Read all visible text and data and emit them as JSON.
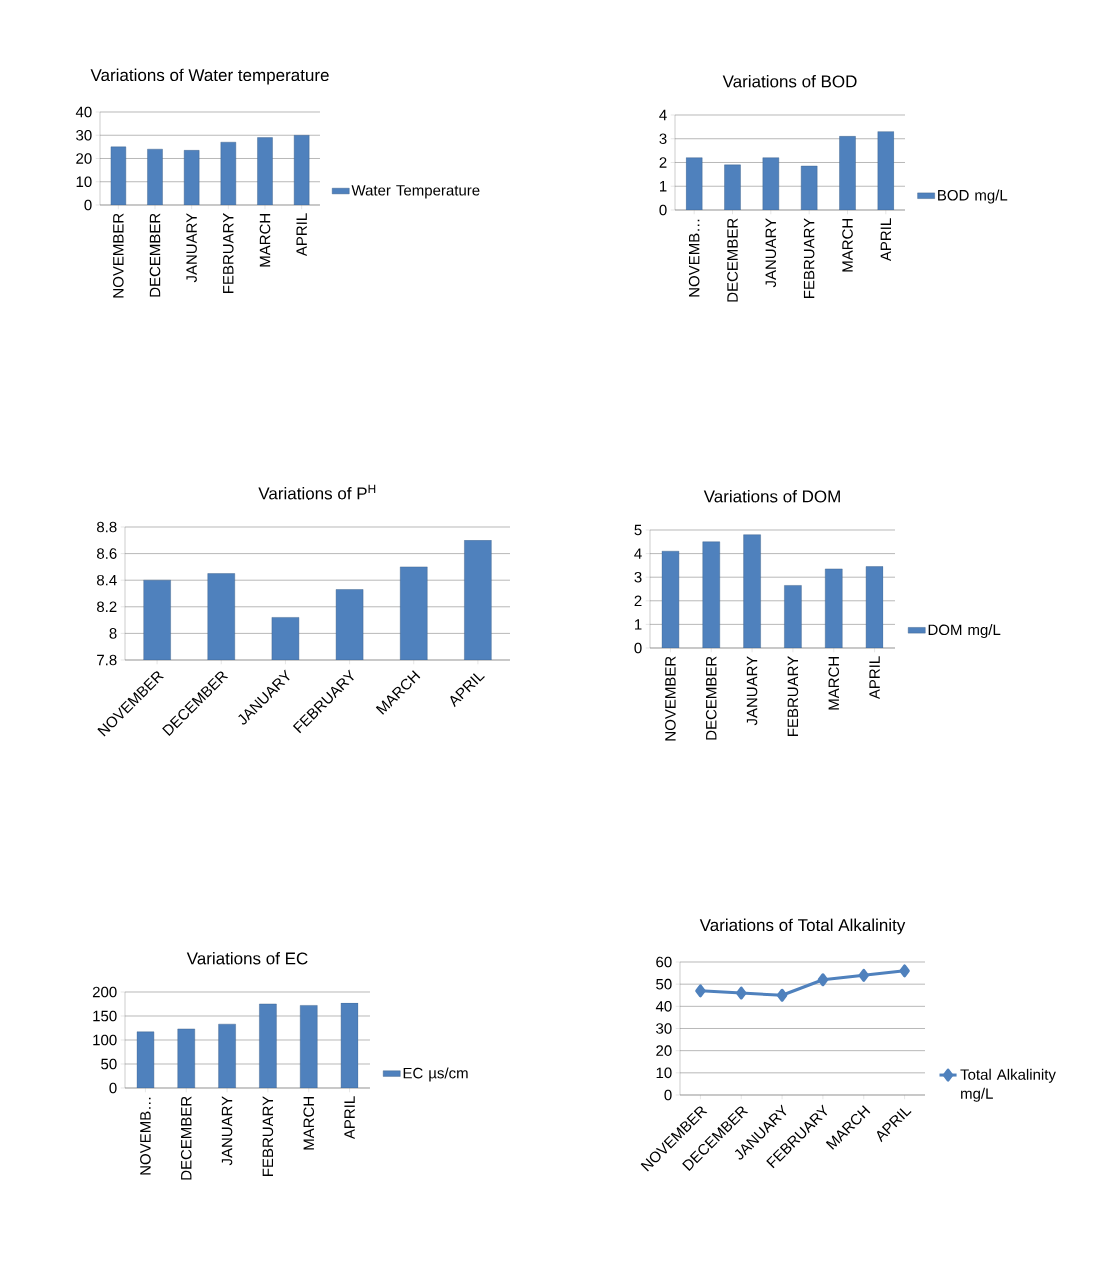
{
  "chart_data": [
    {
      "type": "bar",
      "title": "Variations of Water temperature",
      "categories": [
        "NOVEMBER",
        "DECEMBER",
        "JANUARY",
        "FEBRUARY",
        "MARCH",
        "APRIL"
      ],
      "series": [
        {
          "name": "Water Temperature",
          "color": "#4f81bd",
          "values": [
            25,
            24,
            23.5,
            27,
            29,
            30
          ]
        }
      ],
      "ylim": [
        0,
        40
      ],
      "yticks": [
        0,
        10,
        20,
        30,
        40
      ],
      "grid": "y",
      "legend": "right"
    },
    {
      "type": "bar",
      "title": "Variations  of BOD",
      "categories": [
        "NOVEMB…",
        "DECEMBER",
        "JANUARY",
        "FEBRUARY",
        "MARCH",
        "APRIL"
      ],
      "series": [
        {
          "name": "BOD   mg/L",
          "color": "#4f81bd",
          "values": [
            2.2,
            1.9,
            2.2,
            1.85,
            3.1,
            3.3
          ]
        }
      ],
      "ylim": [
        0,
        4
      ],
      "yticks": [
        0,
        1,
        2,
        3,
        4
      ],
      "grid": "y",
      "legend": "right"
    },
    {
      "type": "bar",
      "title": "Variations of P$^{H}$",
      "categories": [
        "NOVEMBER",
        "DECEMBER",
        "JANUARY",
        "FEBRUARY",
        "MARCH",
        "APRIL"
      ],
      "series": [
        {
          "color": "#4f81bd",
          "values": [
            8.4,
            8.45,
            8.12,
            8.33,
            8.5,
            8.7
          ]
        }
      ],
      "ylim": [
        7.8,
        8.8
      ],
      "yticks": [
        7.8,
        8,
        8.2,
        8.4,
        8.6,
        8.8
      ],
      "grid": "y"
    },
    {
      "type": "bar",
      "title": "Variations of DOM",
      "categories": [
        "NOVEMBER",
        "DECEMBER",
        "JANUARY",
        "FEBRUARY",
        "MARCH",
        "APRIL"
      ],
      "series": [
        {
          "name": "DOM    mg/L",
          "color": "#4f81bd",
          "values": [
            4.1,
            4.5,
            4.8,
            2.65,
            3.35,
            3.45
          ]
        }
      ],
      "ylim": [
        0,
        5
      ],
      "yticks": [
        0,
        1,
        2,
        3,
        4,
        5
      ],
      "grid": "y",
      "legend": "right"
    },
    {
      "type": "bar",
      "title": "Variations of EC",
      "categories": [
        "NOVEMB…",
        "DECEMBER",
        "JANUARY",
        "FEBRUARY",
        "MARCH",
        "APRIL"
      ],
      "series": [
        {
          "name": "EC µs/cm",
          "color": "#4f81bd",
          "values": [
            117,
            123,
            133,
            175,
            172,
            177
          ]
        }
      ],
      "ylim": [
        0,
        200
      ],
      "yticks": [
        0,
        50,
        100,
        150,
        200
      ],
      "grid": "y",
      "legend": "right"
    },
    {
      "type": "line",
      "title": "Variations of Total Alkalinity",
      "categories": [
        "NOVEMBER",
        "DECEMBER",
        "JANUARY",
        "FEBRUARY",
        "MARCH",
        "APRIL"
      ],
      "series": [
        {
          "name": "Total Alkalinity mg/L",
          "color": "#4f81bd",
          "values": [
            47,
            46,
            45,
            52,
            54,
            56
          ]
        }
      ],
      "ylim": [
        0,
        60
      ],
      "yticks": [
        0,
        10,
        20,
        30,
        40,
        50,
        60
      ],
      "grid": "y",
      "legend": "right",
      "marker": "diamond",
      "line_style": "solid"
    }
  ]
}
